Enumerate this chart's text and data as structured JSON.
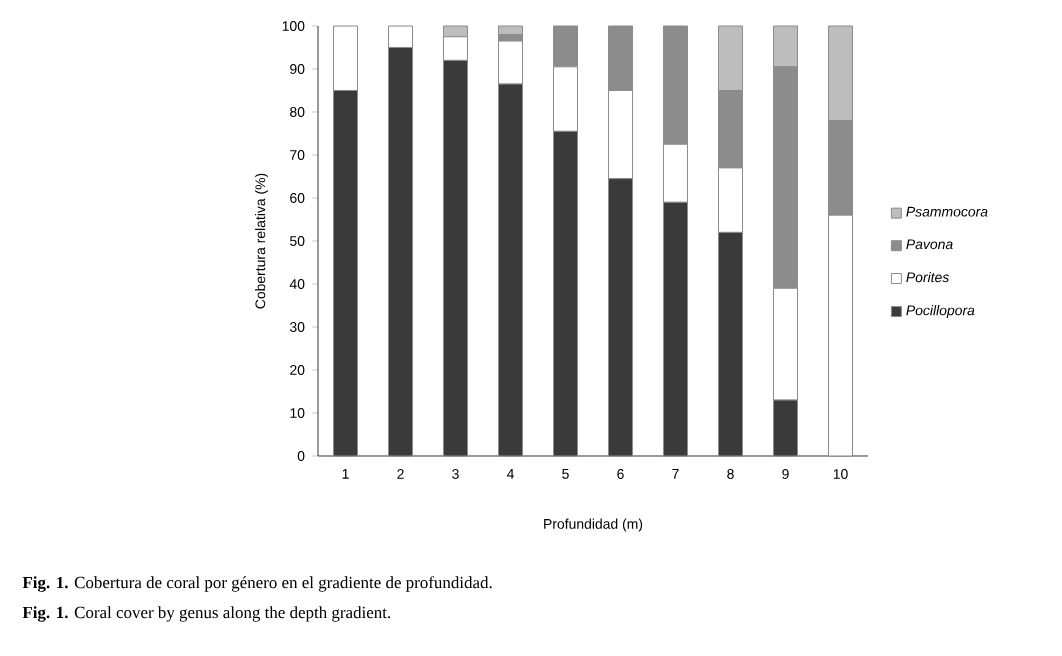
{
  "chart_data": {
    "type": "bar",
    "stacked": true,
    "xlabel": "Profundidad (m)",
    "ylabel": "Cobertura relativa (%)",
    "categories": [
      "1",
      "2",
      "3",
      "4",
      "5",
      "6",
      "7",
      "8",
      "9",
      "10"
    ],
    "series": [
      {
        "name": "Pocillopora",
        "color": "#3a3a3a",
        "values": [
          85,
          95,
          92,
          86.5,
          75.5,
          64.5,
          59,
          52,
          13,
          0
        ]
      },
      {
        "name": "Porites",
        "color": "#ffffff",
        "values": [
          15,
          5,
          5.5,
          10,
          15,
          20.5,
          13.5,
          15,
          26,
          56
        ]
      },
      {
        "name": "Pavona",
        "color": "#8c8c8c",
        "values": [
          0,
          0,
          0,
          1.5,
          9.5,
          15,
          27.5,
          18,
          51.5,
          22
        ]
      },
      {
        "name": "Psammocora",
        "color": "#bdbdbd",
        "values": [
          0,
          0,
          2.5,
          2,
          0,
          0,
          0,
          15,
          9.5,
          22
        ]
      }
    ],
    "ylim": [
      0,
      100
    ],
    "yticks": [
      0,
      10,
      20,
      30,
      40,
      50,
      60,
      70,
      80,
      90,
      100
    ],
    "legend": "right",
    "annotations": [
      "**Fig. 1.** Cobertura de coral por género en el gradiente de profundidad.",
      "**Fig. 1.** Coral cover by genus along the depth gradient."
    ]
  }
}
